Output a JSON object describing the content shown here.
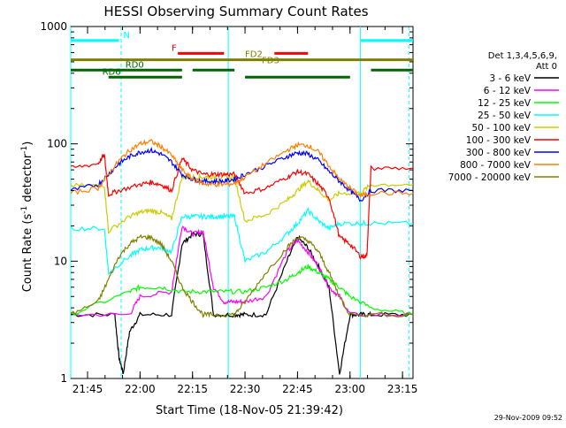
{
  "chart_data": {
    "type": "line",
    "title": "HESSI Observing Summary Count Rates",
    "xlabel": "Start Time (18-Nov-05 21:39:42)",
    "ylabel_main": "Count Rate (s",
    "ylabel_sup1": "-1",
    "ylabel_mid": " detector",
    "ylabel_sup2": "-1",
    "ylabel_end": ")",
    "yscale": "log",
    "ylim": [
      1,
      1000
    ],
    "xlim_minutes": [
      21.67,
      23.3
    ],
    "y_ticks": [
      {
        "value": 1,
        "label": "1"
      },
      {
        "value": 10,
        "label": "10"
      },
      {
        "value": 100,
        "label": "100"
      },
      {
        "value": 1000,
        "label": "1000"
      }
    ],
    "x_ticks": [
      {
        "value": 21.75,
        "label": "21:45"
      },
      {
        "value": 22.0,
        "label": "22:00"
      },
      {
        "value": 22.25,
        "label": "22:15"
      },
      {
        "value": 22.5,
        "label": "22:30"
      },
      {
        "value": 22.75,
        "label": "22:45"
      },
      {
        "value": 23.0,
        "label": "23:00"
      },
      {
        "value": 23.25,
        "label": "23:15"
      }
    ],
    "legend_header": [
      "Det 1,3,4,5,6,9,",
      "Att 0"
    ],
    "series": [
      {
        "name": "3 - 6 keV",
        "color": "#000000",
        "x": [
          21.67,
          21.88,
          21.9,
          21.92,
          21.95,
          22.0,
          22.15,
          22.2,
          22.25,
          22.3,
          22.35,
          22.45,
          22.5,
          22.6,
          22.7,
          22.75,
          22.8,
          22.85,
          22.9,
          22.95,
          23.0,
          23.05,
          23.1,
          23.3
        ],
        "y": [
          3.5,
          3.5,
          1.5,
          1.1,
          2.5,
          3.5,
          3.5,
          14,
          17,
          17,
          3.5,
          3.5,
          3.5,
          3.5,
          10,
          16,
          13,
          9,
          6,
          1.1,
          3.5,
          3.5,
          3.5,
          3.5
        ]
      },
      {
        "name": "6 - 12 keV",
        "color": "#ff00ff",
        "x": [
          21.67,
          21.95,
          22.0,
          22.15,
          22.2,
          22.25,
          22.3,
          22.35,
          22.4,
          22.45,
          22.5,
          22.6,
          22.7,
          22.75,
          22.8,
          22.85,
          22.9,
          22.95,
          23.0,
          23.3
        ],
        "y": [
          3.5,
          3.5,
          5,
          5.5,
          20,
          17,
          18,
          6,
          4.5,
          4.5,
          4.5,
          5,
          12,
          15,
          12,
          9,
          6,
          5,
          3.5,
          3.5
        ]
      },
      {
        "name": "12 - 25 keV",
        "color": "#00ff00",
        "x": [
          21.67,
          21.95,
          22.0,
          22.1,
          22.2,
          22.3,
          22.4,
          22.5,
          22.6,
          22.7,
          22.75,
          22.8,
          22.85,
          22.9,
          22.95,
          23.0,
          23.1,
          23.3
        ],
        "y": [
          3.5,
          5.5,
          6,
          6,
          5.5,
          5.5,
          5.5,
          5.5,
          6,
          7,
          8,
          9,
          8,
          7,
          6,
          5,
          4,
          3.5
        ]
      },
      {
        "name": "25 - 50 keV",
        "color": "#00ffff",
        "x": [
          21.67,
          21.83,
          21.85,
          21.95,
          22.0,
          22.05,
          22.1,
          22.15,
          22.2,
          22.25,
          22.3,
          22.35,
          22.4,
          22.45,
          22.5,
          22.6,
          22.7,
          22.75,
          22.8,
          22.85,
          22.9,
          22.95,
          23.05,
          23.1,
          23.3
        ],
        "y": [
          19,
          19,
          8,
          11,
          12.5,
          13,
          13,
          12,
          24,
          24,
          24,
          24,
          24,
          24,
          10,
          12,
          17,
          21,
          27,
          22,
          19,
          21,
          21,
          21,
          21
        ]
      },
      {
        "name": "50 - 100 keV",
        "color": "#cccc00",
        "x": [
          21.67,
          21.83,
          21.85,
          21.95,
          22.0,
          22.05,
          22.1,
          22.15,
          22.2,
          22.25,
          22.3,
          22.35,
          22.4,
          22.45,
          22.5,
          22.6,
          22.7,
          22.75,
          22.8,
          22.85,
          22.9,
          22.95,
          23.05,
          23.1,
          23.3
        ],
        "y": [
          44,
          44,
          18,
          24,
          26,
          27,
          26,
          23,
          52,
          52,
          52,
          52,
          52,
          52,
          22,
          25,
          33,
          40,
          48,
          40,
          33,
          38,
          38,
          45,
          45
        ]
      },
      {
        "name": "100 - 300 keV",
        "color": "#ff0000",
        "x": [
          21.67,
          21.8,
          21.83,
          21.85,
          21.9,
          22.0,
          22.05,
          22.1,
          22.15,
          22.2,
          22.25,
          22.3,
          22.35,
          22.4,
          22.45,
          22.5,
          22.6,
          22.7,
          22.75,
          22.8,
          22.85,
          22.9,
          22.95,
          23.0,
          23.05,
          23.08,
          23.1,
          23.3
        ],
        "y": [
          62,
          68,
          80,
          37,
          40,
          45,
          47,
          45,
          40,
          75,
          60,
          55,
          55,
          55,
          55,
          38,
          42,
          52,
          58,
          55,
          45,
          35,
          16,
          14,
          11,
          11,
          62,
          62
        ]
      },
      {
        "name": "300 - 800 keV",
        "color": "#0000ff",
        "x": [
          21.67,
          21.8,
          21.85,
          21.9,
          21.95,
          22.0,
          22.05,
          22.1,
          22.15,
          22.2,
          22.25,
          22.3,
          22.35,
          22.4,
          22.45,
          22.5,
          22.6,
          22.7,
          22.75,
          22.8,
          22.85,
          22.9,
          22.95,
          23.0,
          23.05,
          23.1,
          23.3
        ],
        "y": [
          40,
          45,
          55,
          68,
          78,
          85,
          88,
          82,
          70,
          55,
          50,
          48,
          48,
          48,
          50,
          55,
          65,
          78,
          84,
          82,
          72,
          58,
          48,
          40,
          33,
          40,
          40
        ]
      },
      {
        "name": "800 - 7000 keV",
        "color": "#ff8000",
        "x": [
          21.67,
          21.8,
          21.85,
          21.9,
          21.95,
          22.0,
          22.05,
          22.1,
          22.15,
          22.2,
          22.25,
          22.3,
          22.35,
          22.4,
          22.45,
          22.5,
          22.6,
          22.7,
          22.75,
          22.8,
          22.85,
          22.9,
          22.95,
          23.0,
          23.05,
          23.1,
          23.3
        ],
        "y": [
          38,
          42,
          55,
          72,
          88,
          100,
          105,
          95,
          80,
          60,
          50,
          46,
          45,
          45,
          46,
          52,
          68,
          88,
          98,
          97,
          85,
          65,
          50,
          42,
          36,
          38,
          38
        ]
      },
      {
        "name": "7000 - 20000 keV",
        "color": "#808000",
        "x": [
          21.67,
          21.8,
          21.85,
          21.9,
          21.95,
          22.0,
          22.05,
          22.1,
          22.15,
          22.2,
          22.25,
          22.3,
          22.35,
          22.45,
          22.5,
          22.6,
          22.7,
          22.75,
          22.8,
          22.85,
          22.9,
          22.95,
          23.0,
          23.3
        ],
        "y": [
          3.5,
          4.5,
          7,
          11,
          14,
          16,
          16,
          14,
          10,
          6,
          4.5,
          3.5,
          3.5,
          3.5,
          4.5,
          8,
          13,
          16,
          15,
          12,
          8,
          5,
          3.5,
          3.5
        ]
      }
    ],
    "annotations": [
      {
        "label": "N",
        "color": "#00ffff",
        "y": 760,
        "segments": [
          [
            21.67,
            21.9
          ],
          [
            23.05,
            23.3
          ]
        ],
        "label_x": 21.92
      },
      {
        "label": "F",
        "color": "#ff0000",
        "y": 590,
        "segments": [
          [
            22.18,
            22.4
          ],
          [
            22.64,
            22.8
          ]
        ],
        "label_x": 22.15
      },
      {
        "label": "FD2",
        "color": "#808000",
        "y": 520,
        "segments": [
          [
            21.67,
            23.3
          ]
        ],
        "label_x": 22.5
      },
      {
        "label": "FD3",
        "color": "#808000",
        "y": 460,
        "segments": [],
        "label_x": 22.58
      },
      {
        "label": "RD0",
        "color": "#006400",
        "y": 425,
        "segments": [
          [
            21.67,
            22.2
          ],
          [
            22.25,
            22.45
          ],
          [
            23.1,
            23.3
          ]
        ],
        "label_x": 21.93
      },
      {
        "label": "RD6",
        "color": "#006400",
        "y": 370,
        "segments": [
          [
            21.85,
            22.2
          ],
          [
            22.5,
            23.0
          ]
        ],
        "label_x": 21.82
      }
    ],
    "footer_date": "29-Nov-2009 09:52"
  }
}
